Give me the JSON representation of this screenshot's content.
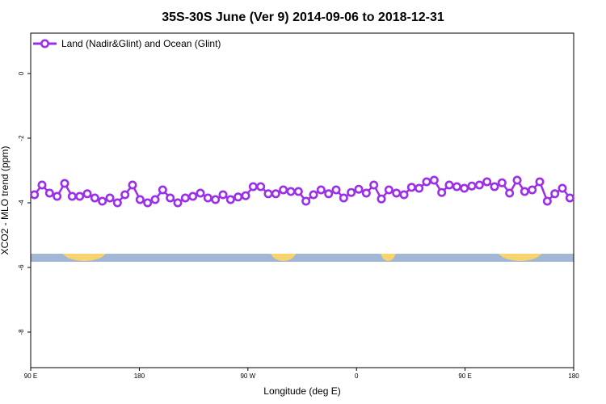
{
  "chart_data": {
    "type": "line",
    "title": "35S-30S June (Ver 9)   2014-09-06 to 2018-12-31",
    "xlabel": "Longitude (deg E)",
    "ylabel": "XCO2 - MLO trend (ppm)",
    "xlim": [
      90,
      450
    ],
    "ylim": [
      -9.1,
      1.25
    ],
    "x_ticks": [
      {
        "value": 90,
        "label": "90 E"
      },
      {
        "value": 162,
        "label": "180"
      },
      {
        "value": 234,
        "label": "90 W"
      },
      {
        "value": 306,
        "label": "0"
      },
      {
        "value": 378,
        "label": "90 E"
      },
      {
        "value": 450,
        "label": "180"
      }
    ],
    "y_ticks": [
      0,
      -2,
      -4,
      -6,
      -8
    ],
    "legend_position": "top-left",
    "grid": false,
    "colors": {
      "series": "#9b30e8",
      "ocean": "#a2b7d4",
      "land": "#f7d46e"
    },
    "series": [
      {
        "name": "Land (Nadir&Glint) and Ocean (Glint)",
        "x": [
          92.5,
          97.5,
          102.5,
          107.5,
          112.5,
          117.5,
          122.5,
          127.5,
          132.5,
          137.5,
          142.5,
          147.5,
          152.5,
          157.5,
          162.5,
          167.5,
          172.5,
          177.5,
          182.5,
          187.5,
          192.5,
          197.5,
          202.5,
          207.5,
          212.5,
          217.5,
          222.5,
          227.5,
          232.5,
          237.5,
          242.5,
          247.5,
          252.5,
          257.5,
          262.5,
          267.5,
          272.5,
          277.5,
          282.5,
          287.5,
          292.5,
          297.5,
          302.5,
          307.5,
          312.5,
          317.5,
          322.5,
          327.5,
          332.5,
          337.5,
          342.5,
          347.5,
          352.5,
          357.5,
          362.5,
          367.5,
          372.5,
          377.5,
          382.5,
          387.5,
          392.5,
          397.5,
          402.5,
          407.5,
          412.5,
          417.5,
          422.5,
          427.5,
          432.5,
          437.5,
          442.5,
          447.5
        ],
        "values": [
          -3.75,
          -3.45,
          -3.7,
          -3.8,
          -3.4,
          -3.8,
          -3.8,
          -3.72,
          -3.85,
          -3.95,
          -3.85,
          -4.0,
          -3.75,
          -3.45,
          -3.9,
          -4.0,
          -3.9,
          -3.6,
          -3.85,
          -4.0,
          -3.85,
          -3.8,
          -3.7,
          -3.85,
          -3.9,
          -3.75,
          -3.9,
          -3.82,
          -3.78,
          -3.5,
          -3.5,
          -3.72,
          -3.72,
          -3.6,
          -3.65,
          -3.65,
          -3.95,
          -3.75,
          -3.6,
          -3.72,
          -3.6,
          -3.85,
          -3.68,
          -3.58,
          -3.7,
          -3.45,
          -3.88,
          -3.6,
          -3.7,
          -3.75,
          -3.52,
          -3.55,
          -3.35,
          -3.3,
          -3.68,
          -3.45,
          -3.5,
          -3.55,
          -3.48,
          -3.45,
          -3.35,
          -3.5,
          -3.38,
          -3.7,
          -3.3,
          -3.65,
          -3.6,
          -3.35,
          -3.95,
          -3.72,
          -3.55,
          -3.85
        ]
      }
    ],
    "land_segments": [
      [
        111,
        140
      ],
      [
        249,
        266
      ],
      [
        322,
        332
      ],
      [
        400,
        429
      ]
    ]
  }
}
